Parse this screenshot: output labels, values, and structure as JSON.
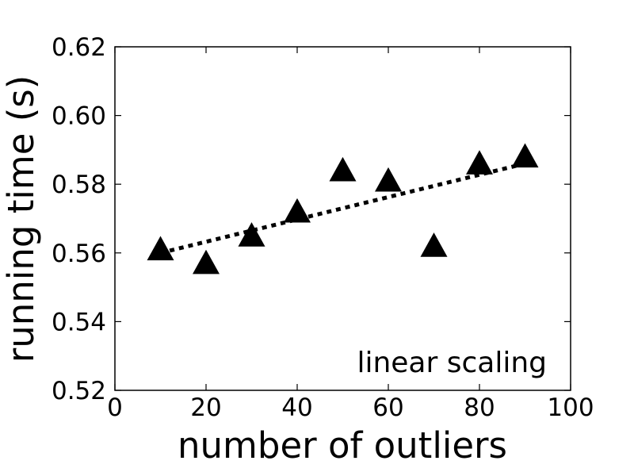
{
  "chart_data": {
    "type": "scatter",
    "xlabel": "number of outliers",
    "ylabel": "running time (s)",
    "xlim": [
      0,
      100
    ],
    "ylim": [
      0.52,
      0.62
    ],
    "xticks": [
      0,
      20,
      40,
      60,
      80,
      100
    ],
    "xtick_labels": [
      "0",
      "20",
      "40",
      "60",
      "80",
      "100"
    ],
    "yticks": [
      0.52,
      0.54,
      0.56,
      0.58,
      0.6,
      0.62
    ],
    "ytick_labels": [
      "0.52",
      "0.54",
      "0.56",
      "0.58",
      "0.60",
      "0.62"
    ],
    "grid": false,
    "marker": "triangle",
    "marker_color": "#000000",
    "series": [
      {
        "x": [
          10,
          20,
          30,
          40,
          50,
          60,
          70,
          80,
          90
        ],
        "y": [
          0.561,
          0.557,
          0.565,
          0.572,
          0.584,
          0.581,
          0.562,
          0.586,
          0.588
        ]
      }
    ],
    "fit_line": {
      "style": "dotted",
      "color": "#000000",
      "x": [
        10,
        90
      ],
      "y": [
        0.56,
        0.586
      ]
    },
    "annotation": "linear scaling",
    "annotation_placement": "bottom-right"
  }
}
